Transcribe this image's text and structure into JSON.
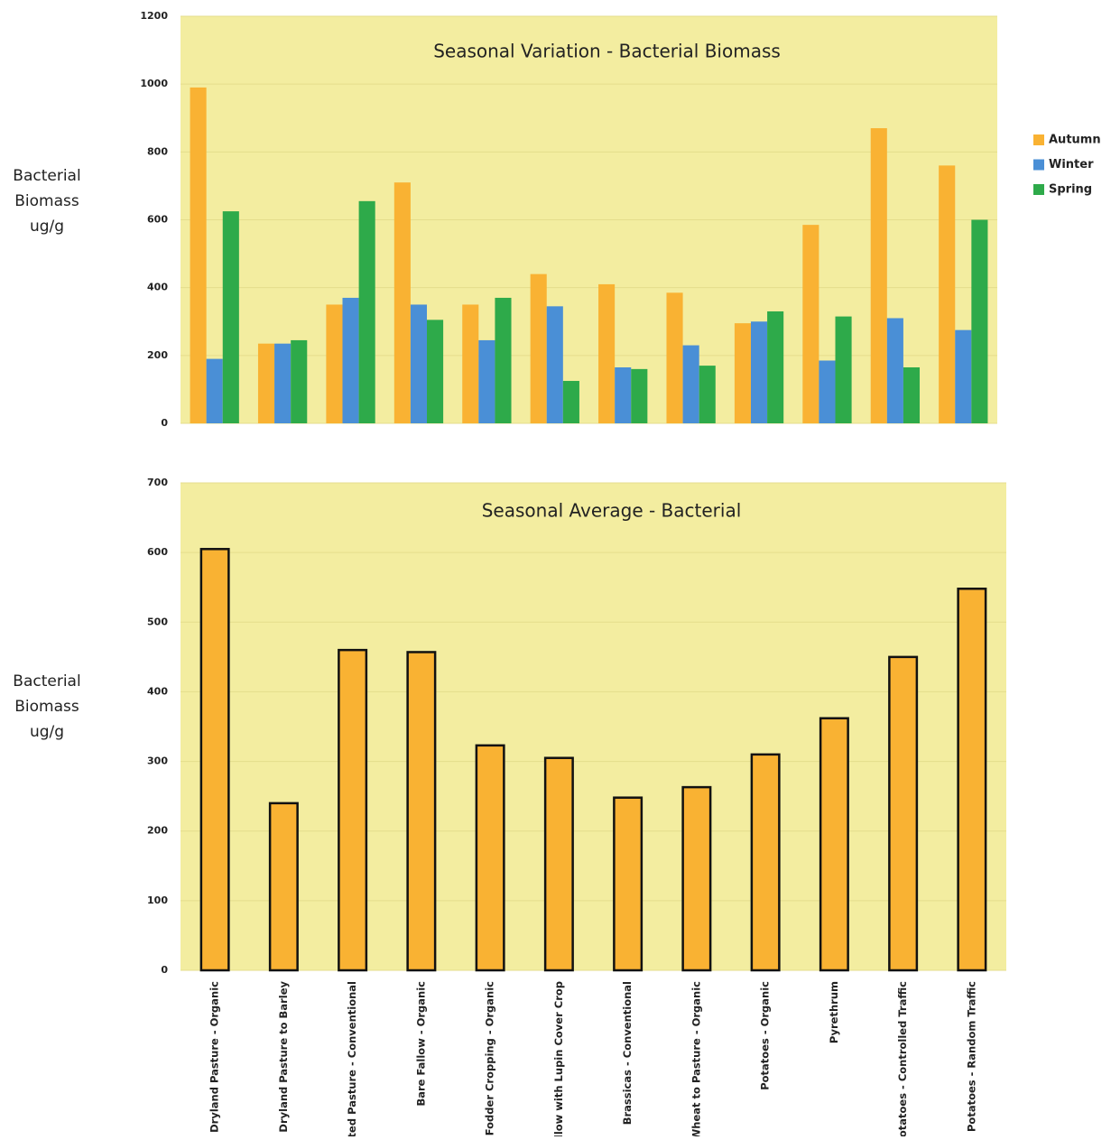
{
  "chart_data": [
    {
      "type": "bar",
      "title": "Seasonal Variation - Bacterial Biomass",
      "ylabel": [
        "Bacterial",
        "Biomass",
        "ug/g"
      ],
      "series": [
        {
          "name": "Autumn",
          "color": "#f9b233",
          "values": [
            990,
            235,
            350,
            710,
            350,
            440,
            410,
            385,
            295,
            585,
            870,
            760
          ]
        },
        {
          "name": "Winter",
          "color": "#4a8fd6",
          "values": [
            190,
            235,
            370,
            350,
            245,
            345,
            165,
            230,
            300,
            185,
            310,
            275
          ]
        },
        {
          "name": "Spring",
          "color": "#2eaa4a",
          "values": [
            625,
            245,
            655,
            305,
            370,
            125,
            160,
            170,
            330,
            315,
            165,
            600
          ]
        }
      ],
      "ylim": [
        0,
        1200
      ],
      "yticks": [
        0,
        200,
        400,
        600,
        800,
        1000,
        1200
      ],
      "grid": true,
      "legend": "right"
    },
    {
      "type": "bar",
      "title": "Seasonal Average - Bacterial",
      "ylabel": [
        "Bacterial",
        "Biomass",
        "ug/g"
      ],
      "categories": [
        "Dryland Pasture - Organic",
        "Dryland Pasture to Barley",
        "Irrigated Pasture - Conventional",
        "Bare Fallow - Organic",
        "Fodder Cropping - Organic",
        "Fallow with Lupin Cover Crop",
        "Brassicas - Conventional",
        "Wheat to Pasture - Organic",
        "Potatoes - Organic",
        "Pyrethrum",
        "Potatoes - Controlled Traffic",
        "Potatoes - Random Traffic"
      ],
      "values": [
        605,
        240,
        460,
        457,
        323,
        305,
        248,
        263,
        310,
        362,
        450,
        548
      ],
      "color": "#f9b233",
      "ylim": [
        0,
        700
      ],
      "yticks": [
        0,
        100,
        200,
        300,
        400,
        500,
        600,
        700
      ],
      "grid": true
    }
  ]
}
